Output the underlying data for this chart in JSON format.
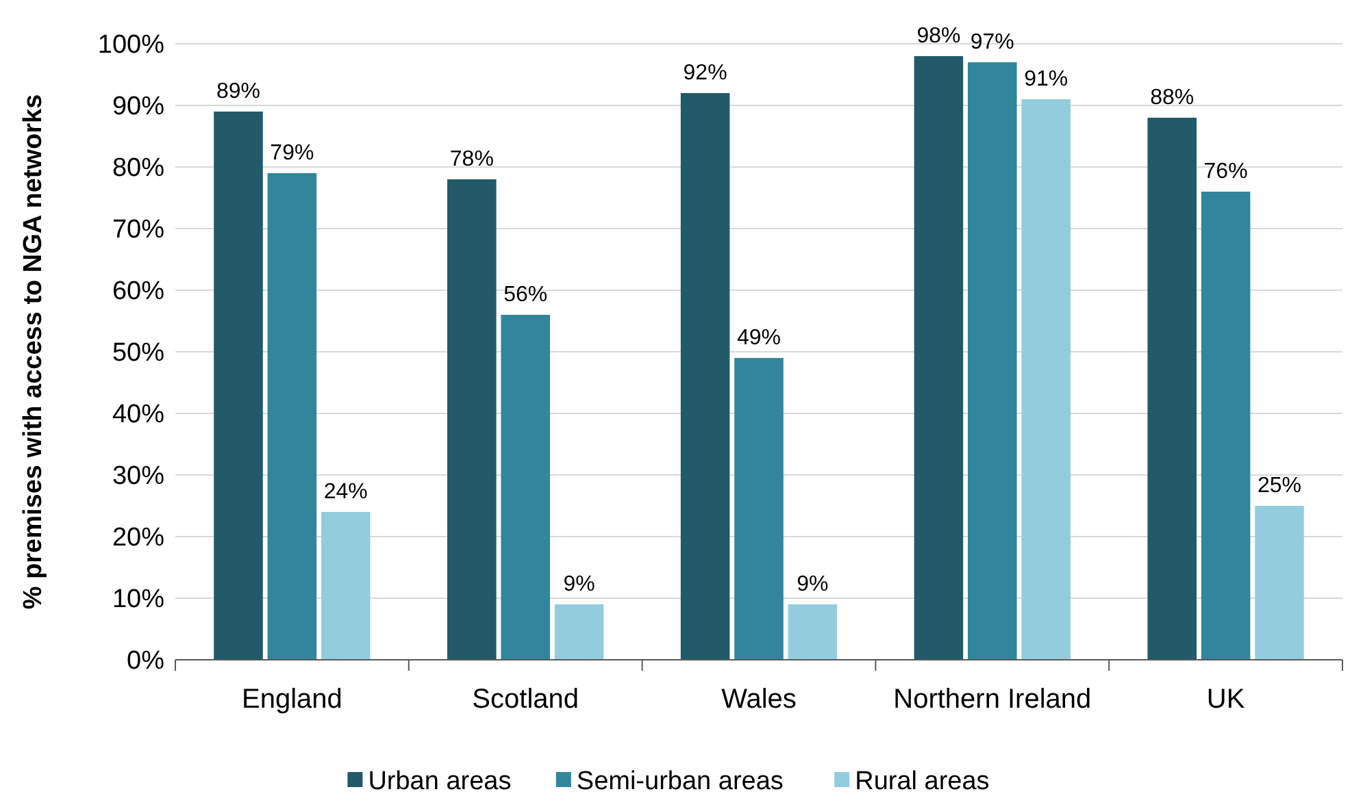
{
  "chart_data": {
    "type": "bar",
    "ylabel": "% premises with access to NGA networks",
    "categories": [
      "England",
      "Scotland",
      "Wales",
      "Northern Ireland",
      "UK"
    ],
    "series": [
      {
        "name": "Urban areas",
        "color": "#235a69",
        "values": [
          89,
          78,
          92,
          98,
          88
        ],
        "value_labels": [
          "89%",
          "78%",
          "92%",
          "98%",
          "88%"
        ]
      },
      {
        "name": "Semi-urban areas",
        "color": "#31869b",
        "values": [
          79,
          56,
          49,
          97,
          76
        ],
        "value_labels": [
          "79%",
          "56%",
          "49%",
          "97%",
          "76%"
        ]
      },
      {
        "name": "Rural areas",
        "color": "#93cddd",
        "values": [
          24,
          9,
          9,
          91,
          25
        ],
        "value_labels": [
          "24%",
          "9%",
          "9%",
          "91%",
          "25%"
        ]
      }
    ],
    "ylim": [
      0,
      100
    ],
    "yticks": [
      {
        "value": 0,
        "label": "0%"
      },
      {
        "value": 10,
        "label": "10%"
      },
      {
        "value": 20,
        "label": "20%"
      },
      {
        "value": 30,
        "label": "30%"
      },
      {
        "value": 40,
        "label": "40%"
      },
      {
        "value": 50,
        "label": "50%"
      },
      {
        "value": 60,
        "label": "60%"
      },
      {
        "value": 70,
        "label": "70%"
      },
      {
        "value": 80,
        "label": "80%"
      },
      {
        "value": 90,
        "label": "90%"
      },
      {
        "value": 100,
        "label": "100%"
      }
    ],
    "grid": "y",
    "legend": "bottom"
  }
}
